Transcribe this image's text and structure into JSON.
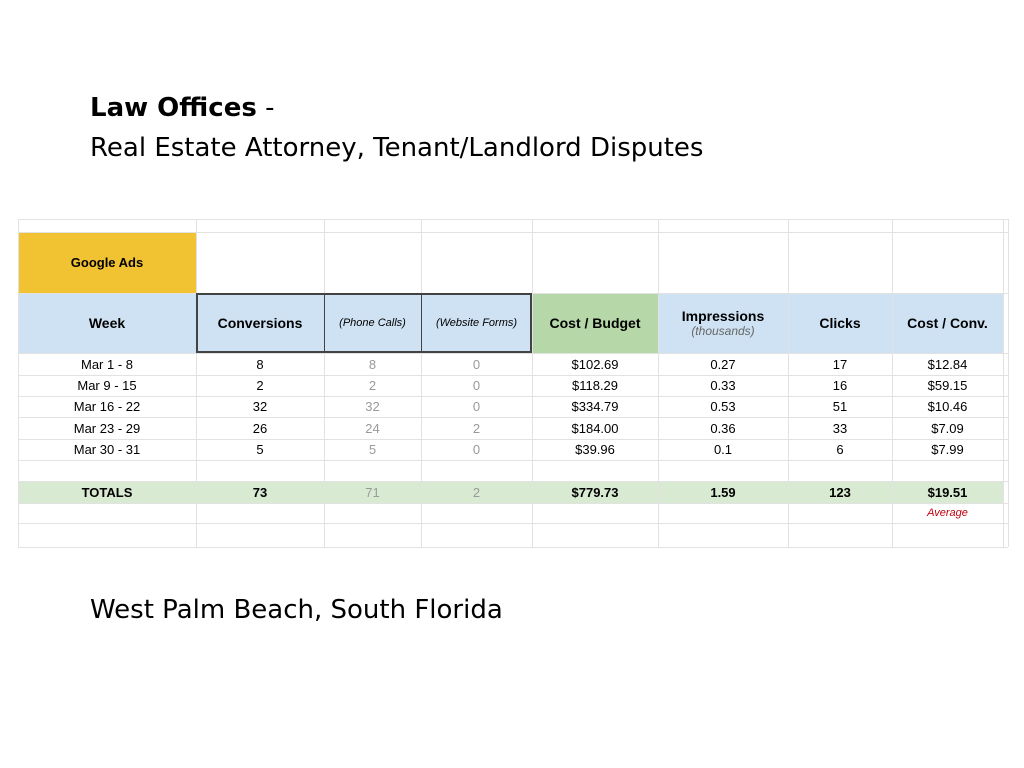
{
  "title": {
    "bold": "Law Offices",
    "dash": " -",
    "subtitle": "Real Estate Attorney, Tenant/Landlord Disputes"
  },
  "location": "West Palm Beach, South Florida",
  "sheet": {
    "source_label": "Google Ads",
    "headers": {
      "week": "Week",
      "conversions": "Conversions",
      "phone_calls": "(Phone Calls)",
      "website_forms": "(Website Forms)",
      "cost_budget": "Cost / Budget",
      "impressions": "Impressions",
      "impressions_unit": "(thousands)",
      "clicks": "Clicks",
      "cost_conv": "Cost / Conv."
    },
    "rows": [
      [
        "Mar 1 - 8",
        "8",
        "8",
        "0",
        "$102.69",
        "0.27",
        "17",
        "$12.84"
      ],
      [
        "Mar 9 - 15",
        "2",
        "2",
        "0",
        "$118.29",
        "0.33",
        "16",
        "$59.15"
      ],
      [
        "Mar 16 - 22",
        "32",
        "32",
        "0",
        "$334.79",
        "0.53",
        "51",
        "$10.46"
      ],
      [
        "Mar 23 - 29",
        "26",
        "24",
        "2",
        "$184.00",
        "0.36",
        "33",
        "$7.09"
      ],
      [
        "Mar 30 - 31",
        "5",
        "5",
        "0",
        "$39.96",
        "0.1",
        "6",
        "$7.99"
      ]
    ],
    "totals": [
      "TOTALS",
      "73",
      "71",
      "2",
      "$779.73",
      "1.59",
      "123",
      "$19.51"
    ],
    "average_note": "Average",
    "colors": {
      "google_ads_bg": "#f1c232",
      "header_bg": "#cfe2f3",
      "cost_header_bg": "#b6d7a8",
      "totals_bg": "#d9ead3",
      "average_text": "#c0000f"
    }
  }
}
